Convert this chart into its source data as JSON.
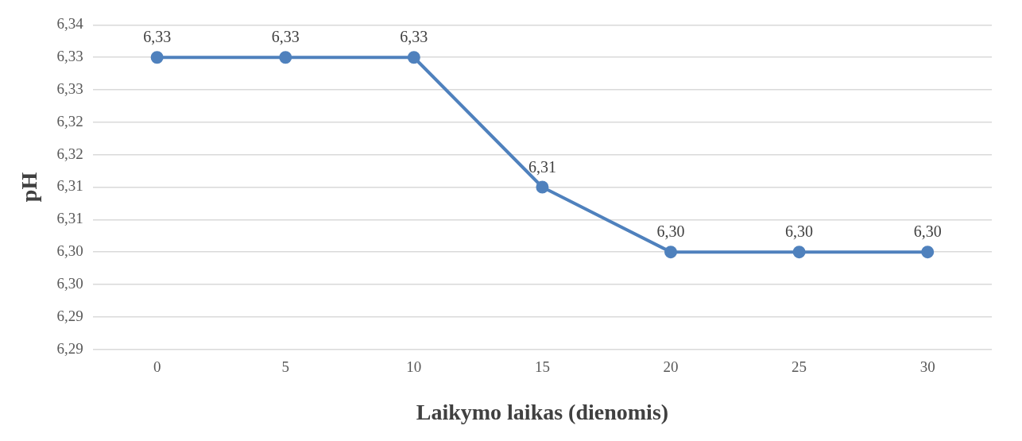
{
  "chart_data": {
    "type": "line",
    "xlabel": "Laikymo laikas (dienomis)",
    "ylabel": "pH",
    "categories": [
      "0",
      "5",
      "10",
      "15",
      "20",
      "25",
      "30"
    ],
    "series": [
      {
        "color": "#4f81bd",
        "values": [
          6.33,
          6.33,
          6.33,
          6.31,
          6.3,
          6.3,
          6.3
        ],
        "value_labels": [
          "6,33",
          "6,33",
          "6,33",
          "6,31",
          "6,30",
          "6,30",
          "6,30"
        ]
      }
    ],
    "ylim": [
      6.285,
      6.335
    ],
    "yticks": [
      {
        "value": 6.285,
        "label": "6,29"
      },
      {
        "value": 6.29,
        "label": "6,29"
      },
      {
        "value": 6.295,
        "label": "6,30"
      },
      {
        "value": 6.3,
        "label": "6,30"
      },
      {
        "value": 6.305,
        "label": "6,31"
      },
      {
        "value": 6.31,
        "label": "6,31"
      },
      {
        "value": 6.315,
        "label": "6,32"
      },
      {
        "value": 6.32,
        "label": "6,32"
      },
      {
        "value": 6.325,
        "label": "6,33"
      },
      {
        "value": 6.33,
        "label": "6,33"
      },
      {
        "value": 6.335,
        "label": "6,34"
      }
    ],
    "grid": "y",
    "marker": "circle",
    "line_style": "solid",
    "legend": false
  }
}
